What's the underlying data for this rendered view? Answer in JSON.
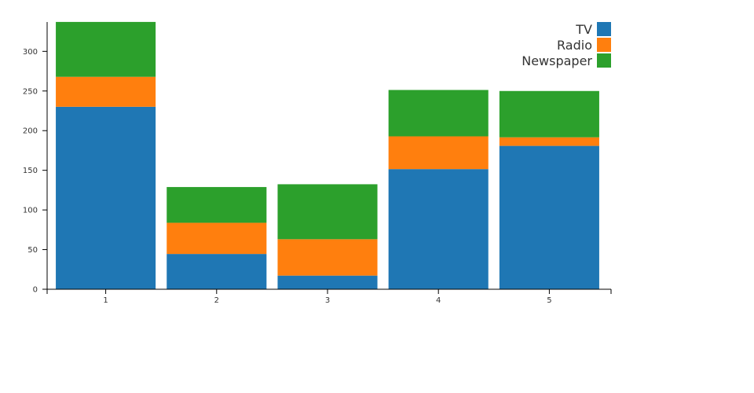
{
  "chart_data": {
    "type": "bar",
    "stacked": true,
    "categories": [
      "1",
      "2",
      "3",
      "4",
      "5"
    ],
    "series": [
      {
        "name": "TV",
        "color": "#1f77b4",
        "values": [
          230.1,
          44.5,
          17.2,
          151.5,
          180.8
        ]
      },
      {
        "name": "Radio",
        "color": "#ff7f0e",
        "values": [
          37.8,
          39.3,
          45.9,
          41.3,
          10.8
        ]
      },
      {
        "name": "Newspaper",
        "color": "#2ca02c",
        "values": [
          69.2,
          45.1,
          69.3,
          58.5,
          58.4
        ]
      }
    ],
    "ylim": [
      0,
      337
    ],
    "yticks": [
      0,
      50,
      100,
      150,
      200,
      250,
      300
    ],
    "title": "",
    "xlabel": "",
    "ylabel": "",
    "legend_position": "top-right",
    "grid": false
  }
}
